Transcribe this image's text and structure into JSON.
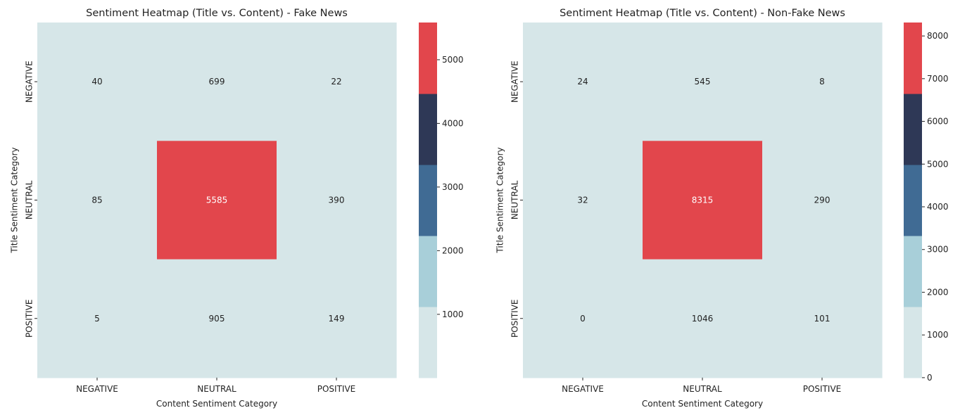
{
  "chart_data": [
    {
      "type": "heatmap",
      "title": "Sentiment Heatmap (Title vs. Content) - Fake News",
      "xlabel": "Content Sentiment Category",
      "ylabel": "Title Sentiment Category",
      "x_categories": [
        "NEGATIVE",
        "NEUTRAL",
        "POSITIVE"
      ],
      "y_categories": [
        "NEGATIVE",
        "NEUTRAL",
        "POSITIVE"
      ],
      "values": [
        [
          40,
          699,
          22
        ],
        [
          85,
          5585,
          390
        ],
        [
          5,
          905,
          149
        ]
      ],
      "colorbar": {
        "range": [
          5,
          5585
        ],
        "ticks": [
          1000,
          2000,
          3000,
          4000,
          5000
        ],
        "colors": [
          "#d6e6e8",
          "#a8cfd9",
          "#406b94",
          "#2e3856",
          "#e2464c"
        ]
      }
    },
    {
      "type": "heatmap",
      "title": "Sentiment Heatmap (Title vs. Content) - Non-Fake News",
      "xlabel": "Content Sentiment Category",
      "ylabel": "Title Sentiment Category",
      "x_categories": [
        "NEGATIVE",
        "NEUTRAL",
        "POSITIVE"
      ],
      "y_categories": [
        "NEGATIVE",
        "NEUTRAL",
        "POSITIVE"
      ],
      "values": [
        [
          24,
          545,
          8
        ],
        [
          32,
          8315,
          290
        ],
        [
          0,
          1046,
          101
        ]
      ],
      "colorbar": {
        "range": [
          0,
          8315
        ],
        "ticks": [
          0,
          1000,
          2000,
          3000,
          4000,
          5000,
          6000,
          7000,
          8000
        ],
        "colors": [
          "#d6e6e8",
          "#a8cfd9",
          "#406b94",
          "#2e3856",
          "#e2464c"
        ]
      }
    }
  ]
}
